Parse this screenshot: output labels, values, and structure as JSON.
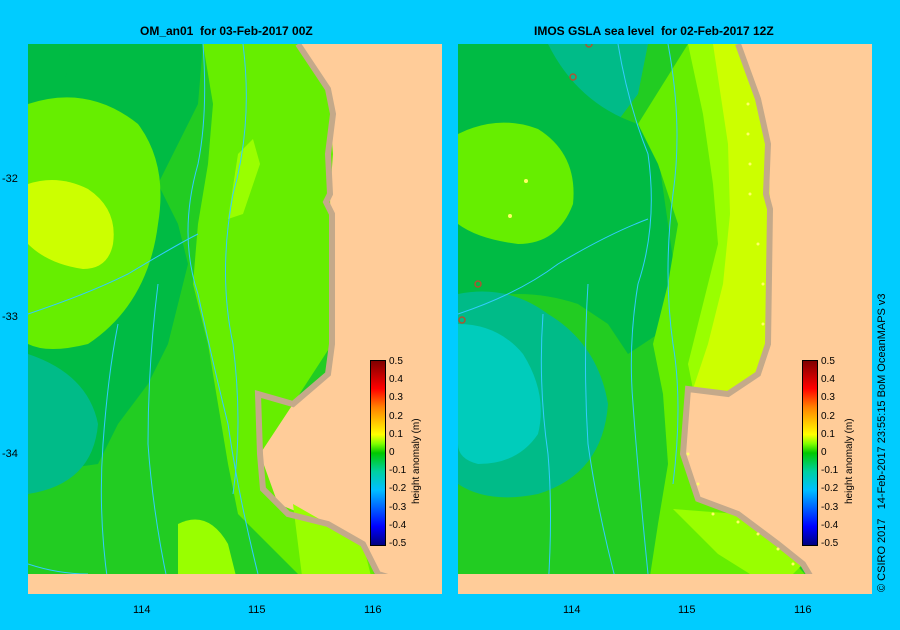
{
  "panels": [
    {
      "title": "OM_an01  for 03-Feb-2017 00Z"
    },
    {
      "title": "IMOS GSLA sea level  for 02-Feb-2017 12Z"
    }
  ],
  "y_ticks": [
    "-32",
    "-33",
    "-34"
  ],
  "x_ticks": [
    "114",
    "115",
    "116"
  ],
  "colorbar": {
    "label": "height anomaly (m)",
    "ticks": [
      "0.5",
      "0.4",
      "0.3",
      "0.2",
      "0.1",
      "0",
      "-0.1",
      "-0.2",
      "-0.3",
      "-0.4",
      "-0.5"
    ]
  },
  "credit": "© CSIRO 2017   14-Feb-2017 23:55:15 BoM OceanMAPS v3",
  "colors": {
    "frame": "#00ccff",
    "land": "#ffcc99",
    "coast": "#c4a98a",
    "anomaly_0_1": "#ccff00",
    "anomaly_0_05": "#99ff00",
    "anomaly_0": "#66ee00",
    "anomaly_neg_0_05": "#22cc22",
    "anomaly_neg_0_1": "#00bb44",
    "anomaly_neg_0_15": "#00bb88",
    "anomaly_neg_0_2": "#00ccbb"
  }
}
